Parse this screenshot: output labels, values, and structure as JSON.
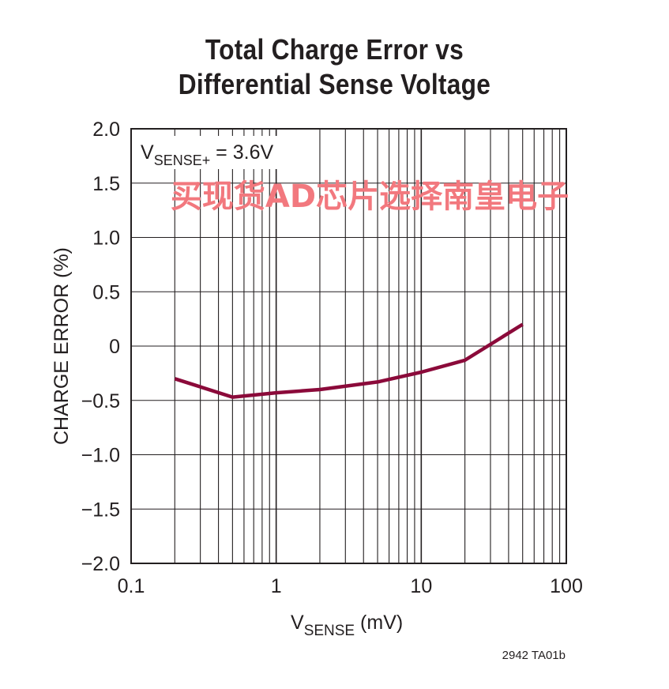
{
  "header": {
    "title_line1": "Total Charge Error vs",
    "title_line2": "Differential Sense Voltage"
  },
  "chart_data": {
    "type": "line",
    "title": "Total Charge Error vs Differential Sense Voltage",
    "xlabel_main": "V",
    "xlabel_sub": "SENSE",
    "xlabel_unit": " (mV)",
    "ylabel": "CHARGE ERROR (%)",
    "xscale": "log",
    "xlim": [
      0.1,
      100
    ],
    "ylim": [
      -2.0,
      2.0
    ],
    "xticks": [
      0.1,
      1,
      10,
      100
    ],
    "xtick_labels": [
      "0.1",
      "1",
      "10",
      "100"
    ],
    "yticks": [
      2.0,
      1.5,
      1.0,
      0.5,
      0,
      -0.5,
      -1.0,
      -1.5,
      -2.0
    ],
    "ytick_labels": [
      "2.0",
      "1.5",
      "1.0",
      "0.5",
      "0",
      "−0.5",
      "−1.0",
      "−1.5",
      "−2.0"
    ],
    "grid": true,
    "annotation": {
      "main": "V",
      "sub": "SENSE+",
      "rest": " = 3.6V"
    },
    "series": [
      {
        "color": "#8b0a3a",
        "x": [
          0.2,
          0.5,
          1,
          2,
          5,
          10,
          20,
          50
        ],
        "y": [
          -0.3,
          -0.47,
          -0.43,
          -0.4,
          -0.33,
          -0.24,
          -0.13,
          0.2
        ]
      }
    ]
  },
  "footer_code": "2942 TA01b",
  "watermark": "买现货AD芯片选择南皇电子"
}
